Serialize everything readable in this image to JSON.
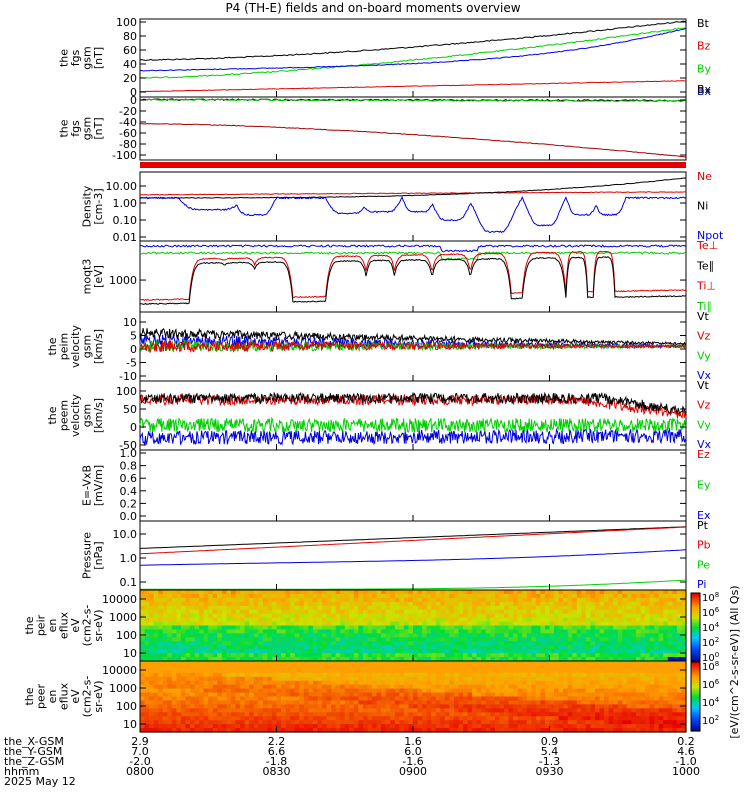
{
  "title": "P4 (TH-E) fields and on-board moments overview",
  "colors": {
    "black": "#000000",
    "red": "#e00000",
    "green": "#00d000",
    "blue": "#0000e0",
    "darkred": "#a00000"
  },
  "time_axis": {
    "rows": [
      {
        "label": "the_X-GSM",
        "values": [
          "2.9",
          "2.2",
          "1.6",
          "0.9",
          "0.2"
        ]
      },
      {
        "label": "the_Y-GSM",
        "values": [
          "7.0",
          "6.6",
          "6.0",
          "5.4",
          "4.6"
        ]
      },
      {
        "label": "the_Z-GSM",
        "values": [
          "-2.0",
          "-1.8",
          "-1.6",
          "-1.3",
          "-1.0"
        ]
      },
      {
        "label": "hhmm",
        "values": [
          "0800",
          "0830",
          "0900",
          "0930",
          "1000"
        ]
      }
    ],
    "date": "2025 May 12"
  },
  "colorbar_label": "[eV/(cm^2-s-sr-eV)] (All Qs)",
  "colorbar_ticks": [
    "10^8",
    "10^6",
    "10^4",
    "10^2",
    "10^0",
    "10^8",
    "10^6",
    "10^4",
    "10^2"
  ],
  "panels": [
    {
      "id": "fgs",
      "ylabel": [
        "the",
        "fgs",
        "gsm",
        "[nT]"
      ],
      "yticks": [
        "100",
        "80",
        "60",
        "40",
        "20",
        "0"
      ],
      "legend": [
        {
          "t": "Bt",
          "c": "#000000"
        },
        {
          "t": "Bz",
          "c": "#e00000"
        },
        {
          "t": "By",
          "c": "#00d000"
        },
        {
          "t": "Bx",
          "c": "#0000e0"
        }
      ]
    },
    {
      "id": "fgs_lo",
      "ylabel": [
        "the",
        "fgs",
        "gsm",
        "[nT]"
      ],
      "yticks": [
        "0",
        "-20",
        "-40",
        "-60",
        "-80",
        "-100"
      ],
      "legend": [
        {
          "t": "Bx",
          "c": "#000000"
        }
      ]
    },
    {
      "id": "density",
      "ylabel": [
        "Density",
        "[cm-3]"
      ],
      "yticks": [
        "10.00",
        "1.00",
        "0.10",
        "0.01"
      ],
      "legend": [
        {
          "t": "Ne",
          "c": "#e00000"
        },
        {
          "t": "Ni",
          "c": "#000000"
        },
        {
          "t": "Npot",
          "c": "#0000e0"
        }
      ]
    },
    {
      "id": "temp",
      "ylabel": [
        "moqt3",
        "[eV]"
      ],
      "yticks": [
        "1000"
      ],
      "legend": [
        {
          "t": "Te⊥",
          "c": "#e00000"
        },
        {
          "t": "Te∥",
          "c": "#000000"
        },
        {
          "t": "Ti⊥",
          "c": "#e00000"
        },
        {
          "t": "Ti∥",
          "c": "#00d000"
        }
      ]
    },
    {
      "id": "vi",
      "ylabel": [
        "the",
        "peim",
        "velocity",
        "gsm",
        "[km/s]"
      ],
      "yticks": [
        "10",
        "5",
        "0",
        "-5",
        "-10"
      ],
      "legend": [
        {
          "t": "Vt",
          "c": "#000000"
        },
        {
          "t": "Vz",
          "c": "#e00000"
        },
        {
          "t": "Vy",
          "c": "#00d000"
        },
        {
          "t": "Vx",
          "c": "#0000e0"
        }
      ]
    },
    {
      "id": "ve",
      "ylabel": [
        "the",
        "peem",
        "velocity",
        "gsm",
        "[km/s]"
      ],
      "yticks": [
        "100",
        "50",
        "0",
        "-50"
      ],
      "legend": [
        {
          "t": "Vt",
          "c": "#000000"
        },
        {
          "t": "Vz",
          "c": "#e00000"
        },
        {
          "t": "Vy",
          "c": "#00d000"
        },
        {
          "t": "Vx",
          "c": "#0000e0"
        }
      ]
    },
    {
      "id": "efield",
      "ylabel": [
        "E=-VxB",
        "[mV/m]"
      ],
      "yticks": [
        "1.0",
        "0.8",
        "0.6",
        "0.4",
        "0.2",
        "0.0"
      ],
      "legend": [
        {
          "t": "Ez",
          "c": "#e00000"
        },
        {
          "t": "Ey",
          "c": "#00d000"
        },
        {
          "t": "Ex",
          "c": "#0000e0"
        }
      ]
    },
    {
      "id": "pressure",
      "ylabel": [
        "Pressure",
        "[nPa]"
      ],
      "yticks": [
        "10.0",
        "1.0",
        "0.1"
      ],
      "legend": [
        {
          "t": "Pt",
          "c": "#000000"
        },
        {
          "t": "Pb",
          "c": "#e00000"
        },
        {
          "t": "Pe",
          "c": "#00d000"
        },
        {
          "t": "Pi",
          "c": "#0000e0"
        }
      ]
    },
    {
      "id": "peir",
      "ylabel": [
        "the",
        "peir",
        "en",
        "eflux",
        "eV",
        "(cm2-s-",
        "sr-eV)"
      ],
      "yticks": [
        "10000",
        "1000",
        "100",
        "10"
      ],
      "legend": []
    },
    {
      "id": "peer",
      "ylabel": [
        "the",
        "peer",
        "en",
        "eflux",
        "eV",
        "(cm2-s-",
        "sr-eV)"
      ],
      "yticks": [
        "10000",
        "1000",
        "100",
        "10"
      ],
      "legend": []
    }
  ],
  "chart_data": {
    "type": "line",
    "title": "P4 (TH-E) fields and on-board moments overview",
    "x": [
      "0800",
      "0830",
      "0900",
      "0930",
      "1000"
    ],
    "series": [
      {
        "name": "Bt",
        "values": [
          46,
          55,
          68,
          82,
          100
        ]
      },
      {
        "name": "By",
        "values": [
          21,
          36,
          52,
          70,
          92
        ]
      },
      {
        "name": "Bx",
        "values": [
          31,
          37,
          45,
          60,
          90
        ]
      },
      {
        "name": "Bz",
        "values": [
          -1,
          3,
          8,
          12,
          17
        ]
      },
      {
        "name": "Bx",
        "values": [
          -46,
          -60,
          -75,
          -92,
          -108
        ]
      },
      {
        "name": "Ne",
        "values": [
          2.5,
          2.4,
          2.6,
          3.0,
          3.5
        ]
      },
      {
        "name": "Ni",
        "values": [
          2.0,
          2.3,
          4.0,
          10,
          30
        ]
      },
      {
        "name": "Npot",
        "values": [
          2.0,
          0.2,
          0.3,
          0.03,
          0.9
        ]
      },
      {
        "name": "Pt",
        "values": [
          2.5,
          4,
          6,
          10,
          20
        ]
      },
      {
        "name": "Pb",
        "values": [
          1.5,
          2.5,
          4.5,
          8,
          20
        ]
      },
      {
        "name": "Pi",
        "values": [
          0.5,
          0.6,
          0.75,
          1.0,
          2.0
        ]
      },
      {
        "name": "Pe",
        "values": [
          0.05,
          0.05,
          0.06,
          0.07,
          0.12
        ]
      }
    ]
  }
}
